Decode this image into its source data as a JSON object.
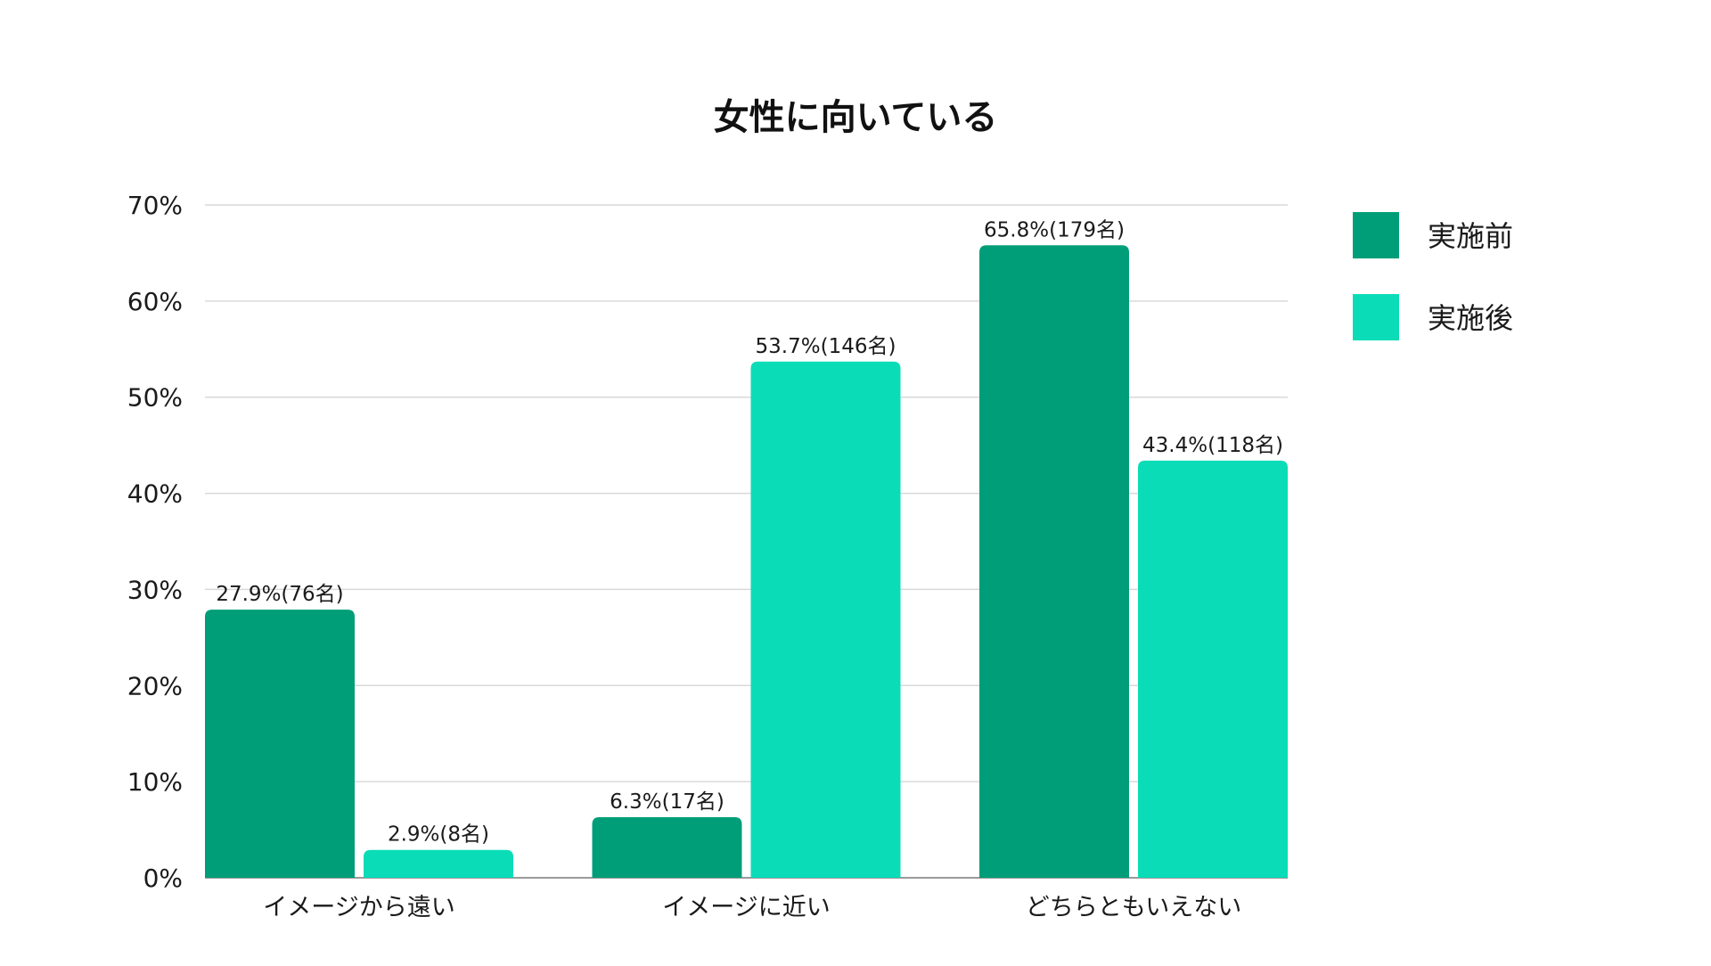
{
  "chart_data": {
    "type": "bar",
    "title": "女性に向いている",
    "categories": [
      "イメージから遠い",
      "イメージに近い",
      "どちらともいえない"
    ],
    "series": [
      {
        "name": "実施前",
        "color": "#009e78",
        "values": [
          27.9,
          6.3,
          65.8
        ],
        "labels": [
          "27.9%(76名)",
          "6.3%(17名)",
          "65.8%(179名)"
        ]
      },
      {
        "name": "実施後",
        "color": "#0adcb8",
        "values": [
          2.9,
          53.7,
          43.4
        ],
        "labels": [
          "2.9%(8名)",
          "53.7%(146名)",
          "43.4%(118名)"
        ]
      }
    ],
    "y_ticks": [
      "0%",
      "10%",
      "20%",
      "30%",
      "40%",
      "50%",
      "60%",
      "70%"
    ],
    "ylim": [
      0,
      70
    ],
    "xlabel": "",
    "ylabel": "",
    "grid": true,
    "legend_position": "right"
  }
}
